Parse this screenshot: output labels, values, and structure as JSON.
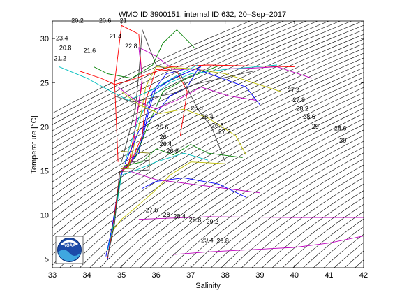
{
  "chart_data": {
    "type": "line",
    "title": "WMO ID 3900151, internal ID 632, 20–Sep–2017",
    "xlabel": "Salinity",
    "ylabel": "Temperature [°C]",
    "xlim": [
      33,
      42
    ],
    "ylim": [
      4,
      32
    ],
    "xticks": [
      "33",
      "34",
      "35",
      "36",
      "37",
      "38",
      "39",
      "40",
      "41",
      "42"
    ],
    "yticks": [
      "5",
      "10",
      "15",
      "20",
      "25",
      "30"
    ],
    "grid": false,
    "logo_text": "NOAA",
    "density_contours": {
      "from": 20.0,
      "to": 31.0,
      "step": 0.2,
      "labels": [
        {
          "text": "20.2",
          "x": 33.55,
          "y": 31.8
        },
        {
          "text": "20.6",
          "x": 34.35,
          "y": 31.8
        },
        {
          "text": "21",
          "x": 34.95,
          "y": 31.8
        },
        {
          "text": "21.4",
          "x": 34.65,
          "y": 30.0
        },
        {
          "text": "23.4",
          "x": 33.1,
          "y": 29.8
        },
        {
          "text": "20.8",
          "x": 33.2,
          "y": 28.7
        },
        {
          "text": "21.6",
          "x": 33.9,
          "y": 28.4
        },
        {
          "text": "21.2",
          "x": 33.05,
          "y": 27.5
        },
        {
          "text": "22.8",
          "x": 35.1,
          "y": 28.9
        },
        {
          "text": "27.4",
          "x": 39.8,
          "y": 23.9
        },
        {
          "text": "27.8",
          "x": 39.95,
          "y": 22.8
        },
        {
          "text": "28.2",
          "x": 40.05,
          "y": 21.8
        },
        {
          "text": "28.6",
          "x": 40.25,
          "y": 20.9
        },
        {
          "text": "29",
          "x": 40.5,
          "y": 19.8
        },
        {
          "text": "28.6",
          "x": 41.15,
          "y": 19.6
        },
        {
          "text": "30",
          "x": 41.3,
          "y": 18.2
        },
        {
          "text": "26.8",
          "x": 37.0,
          "y": 21.9
        },
        {
          "text": "26.4",
          "x": 37.3,
          "y": 20.9
        },
        {
          "text": "26.8",
          "x": 37.6,
          "y": 19.9
        },
        {
          "text": "27.2",
          "x": 37.8,
          "y": 19.2
        },
        {
          "text": "25.6",
          "x": 36.0,
          "y": 19.7
        },
        {
          "text": "26",
          "x": 36.1,
          "y": 18.6
        },
        {
          "text": "26.4",
          "x": 36.1,
          "y": 17.8
        },
        {
          "text": "26.8",
          "x": 36.3,
          "y": 17.0
        },
        {
          "text": "27.6",
          "x": 35.7,
          "y": 10.3
        },
        {
          "text": "28",
          "x": 36.2,
          "y": 9.8
        },
        {
          "text": "28.4",
          "x": 36.5,
          "y": 9.6
        },
        {
          "text": "28.8",
          "x": 36.95,
          "y": 9.2
        },
        {
          "text": "29.2",
          "x": 37.45,
          "y": 9.0
        },
        {
          "text": "29.4",
          "x": 37.3,
          "y": 6.9
        },
        {
          "text": "29.8",
          "x": 37.75,
          "y": 6.8
        }
      ]
    },
    "series": [
      {
        "color": "#0000ff",
        "points": [
          [
            34.6,
            5.0
          ],
          [
            34.7,
            8.0
          ],
          [
            34.85,
            11.5
          ],
          [
            35.0,
            15.0
          ],
          [
            35.3,
            16.0
          ],
          [
            35.6,
            18.5
          ],
          [
            35.8,
            22.0
          ],
          [
            36.0,
            24.5
          ],
          [
            36.3,
            26.0
          ],
          [
            36.8,
            26.5
          ]
        ]
      },
      {
        "color": "#0000ff",
        "points": [
          [
            34.55,
            5.3
          ],
          [
            34.75,
            9.0
          ],
          [
            34.9,
            13.0
          ],
          [
            35.05,
            15.3
          ],
          [
            35.5,
            17.0
          ],
          [
            35.7,
            21.0
          ],
          [
            35.9,
            24.0
          ],
          [
            36.5,
            25.5
          ],
          [
            37.3,
            26.8
          ]
        ]
      },
      {
        "color": "#ff0000",
        "points": [
          [
            34.6,
            5.1
          ],
          [
            34.8,
            10.0
          ],
          [
            34.95,
            14.8
          ],
          [
            35.2,
            15.5
          ],
          [
            35.4,
            20.0
          ],
          [
            35.6,
            25.0
          ],
          [
            35.5,
            30.5
          ],
          [
            35.0,
            31.5
          ],
          [
            34.8,
            25.0
          ],
          [
            34.9,
            16.0
          ]
        ]
      },
      {
        "color": "#ff0000",
        "points": [
          [
            35.0,
            15.2
          ],
          [
            35.3,
            16.2
          ],
          [
            35.6,
            19.0
          ],
          [
            35.7,
            23.0
          ],
          [
            36.0,
            26.5
          ],
          [
            36.6,
            26.3
          ],
          [
            36.9,
            24.0
          ],
          [
            36.7,
            19.0
          ]
        ]
      },
      {
        "color": "#008000",
        "points": [
          [
            34.7,
            7.0
          ],
          [
            34.85,
            11.0
          ],
          [
            35.0,
            15.0
          ],
          [
            35.4,
            16.5
          ],
          [
            35.8,
            20.5
          ],
          [
            36.2,
            24.0
          ],
          [
            36.9,
            25.5
          ],
          [
            37.8,
            26.9
          ]
        ]
      },
      {
        "color": "#008000",
        "points": [
          [
            35.0,
            15.5
          ],
          [
            35.6,
            16.0
          ],
          [
            36.0,
            17.5
          ],
          [
            36.5,
            16.8
          ],
          [
            37.0,
            18.0
          ],
          [
            37.5,
            17.0
          ],
          [
            38.5,
            16.5
          ]
        ]
      },
      {
        "color": "#00bfbf",
        "points": [
          [
            34.6,
            6.0
          ],
          [
            34.8,
            9.5
          ],
          [
            35.0,
            14.5
          ],
          [
            35.5,
            15.2
          ],
          [
            36.0,
            16.0
          ],
          [
            36.8,
            17.0
          ],
          [
            37.5,
            16.2
          ]
        ]
      },
      {
        "color": "#00bfbf",
        "points": [
          [
            35.1,
            16.0
          ],
          [
            35.5,
            21.0
          ],
          [
            35.9,
            23.5
          ],
          [
            36.4,
            25.0
          ],
          [
            37.0,
            26.0
          ],
          [
            38.0,
            26.5
          ],
          [
            39.5,
            27.0
          ]
        ]
      },
      {
        "color": "#bf00bf",
        "points": [
          [
            35.0,
            15.0
          ],
          [
            35.3,
            16.0
          ],
          [
            35.4,
            20.0
          ],
          [
            35.6,
            25.5
          ],
          [
            35.5,
            29.0
          ],
          [
            36.0,
            28.0
          ],
          [
            36.5,
            26.5
          ],
          [
            38.5,
            26.6
          ],
          [
            39.5,
            26.8
          ],
          [
            40.5,
            25.5
          ]
        ]
      },
      {
        "color": "#bf00bf",
        "points": [
          [
            35.5,
            9.5
          ],
          [
            37.5,
            9.8
          ],
          [
            40.0,
            9.7
          ],
          [
            42.0,
            9.7
          ]
        ]
      },
      {
        "color": "#bf00bf",
        "points": [
          [
            36.5,
            5.5
          ],
          [
            37.5,
            5.8
          ],
          [
            38.5,
            6.0
          ],
          [
            40.0,
            6.3
          ],
          [
            41.0,
            6.8
          ],
          [
            42.0,
            7.6
          ]
        ]
      },
      {
        "color": "#bfbf00",
        "points": [
          [
            34.7,
            8.0
          ],
          [
            35.0,
            9.5
          ],
          [
            35.4,
            10.8
          ],
          [
            35.9,
            12.5
          ],
          [
            36.4,
            14.5
          ],
          [
            37.0,
            16.0
          ],
          [
            38.0,
            15.8
          ]
        ]
      },
      {
        "color": "#bfbf00",
        "points": [
          [
            35.2,
            15.3
          ],
          [
            35.5,
            20.0
          ],
          [
            35.7,
            24.5
          ],
          [
            36.0,
            26.8
          ],
          [
            37.0,
            26.6
          ],
          [
            38.0,
            26.0
          ],
          [
            39.6,
            24.0
          ]
        ]
      },
      {
        "color": "#404040",
        "points": [
          [
            34.6,
            5.2
          ],
          [
            34.8,
            9.0
          ],
          [
            34.95,
            14.9
          ],
          [
            35.8,
            15.1
          ],
          [
            35.8,
            16.2
          ],
          [
            35.3,
            16.0
          ]
        ]
      },
      {
        "color": "#404040",
        "points": [
          [
            35.0,
            16.0
          ],
          [
            35.4,
            22.0
          ],
          [
            35.5,
            26.0
          ],
          [
            35.6,
            31.0
          ],
          [
            36.0,
            27.0
          ],
          [
            36.7,
            26.0
          ],
          [
            37.2,
            22.0
          ],
          [
            37.6,
            20.0
          ],
          [
            38.0,
            16.0
          ]
        ]
      },
      {
        "color": "#808000",
        "points": [
          [
            35.0,
            15.2
          ],
          [
            35.4,
            15.3
          ],
          [
            35.8,
            15.3
          ],
          [
            35.8,
            17.0
          ],
          [
            35.0,
            17.2
          ]
        ]
      },
      {
        "color": "#0000ff",
        "points": [
          [
            35.1,
            15.8
          ],
          [
            35.5,
            19.5
          ],
          [
            36.0,
            21.5
          ],
          [
            36.4,
            23.5
          ],
          [
            36.9,
            24.5
          ],
          [
            37.2,
            26.5
          ],
          [
            38.6,
            24.5
          ],
          [
            39.0,
            22.5
          ]
        ]
      },
      {
        "color": "#ff0000",
        "points": [
          [
            33.8,
            26.3
          ],
          [
            34.4,
            25.5
          ],
          [
            34.8,
            24.8
          ],
          [
            35.2,
            25.2
          ],
          [
            35.8,
            26.0
          ],
          [
            36.4,
            26.8
          ],
          [
            37.5,
            27.0
          ],
          [
            40.0,
            26.8
          ]
        ]
      },
      {
        "color": "#008000",
        "points": [
          [
            34.2,
            26.8
          ],
          [
            34.6,
            26.0
          ],
          [
            35.3,
            25.5
          ],
          [
            35.9,
            27.0
          ],
          [
            36.2,
            29.5
          ],
          [
            36.6,
            31.0
          ],
          [
            37.1,
            29.0
          ]
        ]
      },
      {
        "color": "#00bfbf",
        "points": [
          [
            33.2,
            26.8
          ],
          [
            34.0,
            25.5
          ],
          [
            34.7,
            24.0
          ],
          [
            35.2,
            23.0
          ],
          [
            35.9,
            24.2
          ],
          [
            36.6,
            25.8
          ],
          [
            37.2,
            27.0
          ]
        ]
      },
      {
        "color": "#bf00bf",
        "points": [
          [
            34.9,
            24.5
          ],
          [
            35.4,
            23.0
          ],
          [
            36.0,
            22.0
          ],
          [
            36.6,
            23.0
          ],
          [
            37.3,
            24.5
          ],
          [
            38.1,
            23.5
          ],
          [
            38.9,
            23.0
          ]
        ]
      },
      {
        "color": "#bfbf00",
        "points": [
          [
            35.0,
            24.0
          ],
          [
            35.5,
            22.5
          ],
          [
            36.1,
            21.5
          ],
          [
            36.8,
            22.0
          ],
          [
            37.5,
            21.0
          ],
          [
            38.3,
            19.0
          ],
          [
            38.6,
            16.8
          ]
        ]
      },
      {
        "color": "#404040",
        "points": [
          [
            34.8,
            23.5
          ],
          [
            35.3,
            22.8
          ],
          [
            35.9,
            23.3
          ],
          [
            36.5,
            23.8
          ],
          [
            37.1,
            24.8
          ],
          [
            38.8,
            26.3
          ]
        ]
      },
      {
        "color": "#0000ff",
        "points": [
          [
            35.6,
            13.0
          ],
          [
            36.0,
            13.8
          ],
          [
            36.8,
            14.2
          ],
          [
            37.8,
            13.5
          ],
          [
            38.6,
            12.0
          ]
        ]
      },
      {
        "color": "#bf00bf",
        "points": [
          [
            35.2,
            15.0
          ],
          [
            36.0,
            14.0
          ],
          [
            37.0,
            13.5
          ],
          [
            38.0,
            13.0
          ],
          [
            39.0,
            12.5
          ]
        ]
      }
    ]
  }
}
